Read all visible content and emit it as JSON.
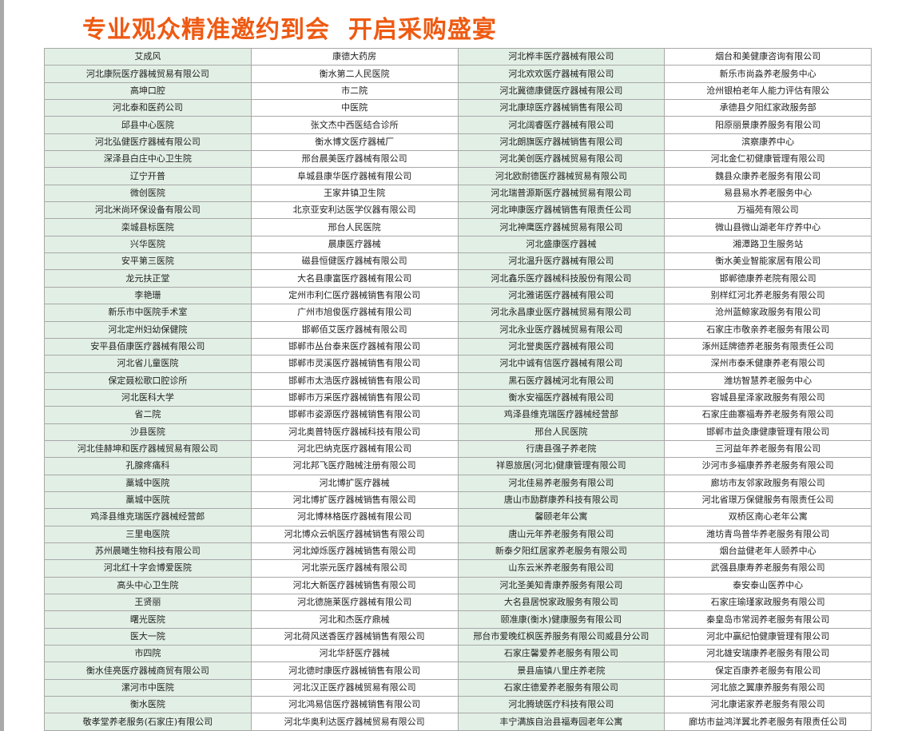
{
  "title": "专业观众精准邀约到会  开启采购盛宴",
  "colors": {
    "title": "#ee5a12",
    "alt_column_bg": "#e2efe5",
    "border": "#a8a8a8"
  },
  "rows": [
    [
      "艾成风",
      "康德大药房",
      "河北桦丰医疗器械有限公司",
      "烟台和美健康咨询有限公司"
    ],
    [
      "河北康阮医疗器械贸易有限公司",
      "衡水第二人民医院",
      "河北欢欢医疗器械有限公司",
      "新乐市尚淼养老服务中心"
    ],
    [
      "高坤口腔",
      "市二院",
      "河北冀德康健医疗器械有限公司",
      "沧州银柏老年人能力评估有限公"
    ],
    [
      "河北泰和医药公司",
      "中医院",
      "河北康琼医疗器械销售有限公司",
      "承德县夕阳红家政服务部"
    ],
    [
      "邱县中心医院",
      "张文杰中西医结合诊所",
      "河北阔睿医疗器械有限公司",
      "阳原丽景康养服务有限公司"
    ],
    [
      "河北弘健医疗器械有限公司",
      "衡水博文医疗器械厂",
      "河北朗旗医疗器械销售有限公司",
      "滨察康养中心"
    ],
    [
      "深泽县白庄中心卫生院",
      "邢台晨美医疗器械有限公司",
      "河北美创医疗器械贸易有限公司",
      "河北金仁初健康管理有限公司"
    ],
    [
      "辽宁开普",
      "阜城县康华医疗器械有限公司",
      "河北欧耐德医疗器械贸易有限公司",
      "魏县众康养老服务有限公司"
    ],
    [
      "微创医院",
      "王家井镇卫生院",
      "河北瑞普源斯医疗器械贸易有限公司",
      "易县易水养老服务中心"
    ],
    [
      "河北米尚环保设备有限公司",
      "北京亚安利达医学仪器有限公司",
      "河北珅康医疗器械销售有限责任公司",
      "万福苑有限公司"
    ],
    [
      "栾城县标医院",
      "邢台人民医院",
      "河北神鹰医疗器械贸易有限公司",
      "微山县微山湖老年疗养中心"
    ],
    [
      "兴华医院",
      "晨康医疗器械",
      "河北盛康医疗器械",
      "湘潭路卫生服务站"
    ],
    [
      "安平第三医院",
      "磁县恒健医疗器械有限公司",
      "河北温升医疗器械有限公司",
      "衡水美业智能家居有限公司"
    ],
    [
      "龙元扶正堂",
      "大名县康富医疗器械有限公司",
      "河北鑫乐医疗器械科技股份有限公司",
      "邯郸德康养老院有限公司"
    ],
    [
      "李艳珊",
      "定州市利仁医疗器械销售有限公司",
      "河北雅诺医疗器械有限公司",
      "别样红河北养老服务有限公司"
    ],
    [
      "新乐市中医院手术室",
      "广州市旭俊医疗器械有限公司",
      "河北永昌康业医疗器械贸易有限公司",
      "沧州蓝鲸家政服务有限公司"
    ],
    [
      "河北定州妇幼保健院",
      "邯郸佰艾医疗器械有限公司",
      "河北永业医疗器械贸易有限公司",
      "石家庄市敬亲养老服务有限公司"
    ],
    [
      "安平县佰康医疗器械有限公司",
      "邯郸市丛台泰来医疗器械有限公司",
      "河北誉奥医疗器械有限公司",
      "涿州廷牌德养老服务有限责任公司"
    ],
    [
      "河北省儿童医院",
      "邯郸市灵溪医疗器械销售有限公司",
      "河北中诚有信医疗器械有限公司",
      "深州市泰禾健康养老有限公司"
    ],
    [
      "保定聂松歌口腔诊所",
      "邯郸市太浩医疗器械销售有限公司",
      "黑石医疗器械河北有限公司",
      "潍坊智慧养老服务中心"
    ],
    [
      "河北医科大学",
      "邯郸市万采医疗器械销售有限公司",
      "衡水安福医疗器械有限公司",
      "容城县星泽家政服务有限公司"
    ],
    [
      "省二院",
      "邯郸市姿源医疗器械销售有限公司",
      "鸡泽县维克瑞医疗器械经营部",
      "石家庄曲寨福寿养老服务有限公司"
    ],
    [
      "沙县医院",
      "河北奥普特医疗器械科技有限公司",
      "邢台人民医院",
      "邯郸市益灸康健康管理有限公司"
    ],
    [
      "河北佳赫坤和医疗器械贸易有限公司",
      "河北巴纳克医疗器械有限公司",
      "行唐县强子养老院",
      "三河益年养老服务有限公司"
    ],
    [
      "孔腺疼痛科",
      "河北邦飞医疗融械注册有限公司",
      "祥恩旅居(河北)健康管理有限公司",
      "沙河市多福康养养老服务有限公司"
    ],
    [
      "藁城中医院",
      "河北博扩医疗器械",
      "河北佳易养老服务有限公司",
      "廊坊市友邻家政服务有限公司"
    ],
    [
      "藁城中医院",
      "河北博扩医疗器械销售有限公司",
      "唐山市励群康养科技有限公司",
      "河北省璟万保健服务有限责任公司"
    ],
    [
      "鸡泽县维克瑞医疗器械经营郎",
      "河北博林格医疗器械有限公司",
      "馨颐老年公寓",
      "双桥区南心老年公寓"
    ],
    [
      "三里电医院",
      "河北博众云帆医疗器械销售有限公司",
      "唐山元年养老服务有限公司",
      "潍坊青鸟普华养老服务有限公司"
    ],
    [
      "苏州晨曦生物科技有限公司",
      "河北焯烁医疗器械销售有限公司",
      "新泰夕阳红居家养老服务有限公司",
      "烟台益健老年人颐养中心"
    ],
    [
      "河北红十字会博爱医院",
      "河北崇元医疗器械有限公司",
      "山东云米养老服务有限公司",
      "武强县康寿养老服务有限公司"
    ],
    [
      "高头中心卫生院",
      "河北大新医疗器械销售有限公司",
      "河北圣美知青康养服务有限公司",
      "泰安泰山医养中心"
    ],
    [
      "王贤丽",
      "河北德施莱医疗器械有限公司",
      "大名县居悦家政服务有限公司",
      "石家庄瑜瑾家政服务有限公司"
    ],
    [
      "曙光医院",
      "河北和杰医疗鼎械",
      "颐准康(衡水)健康服务有限公司",
      "秦皇岛市常润养老服务有限公司"
    ],
    [
      "医大一院",
      "河北荷风送香医疗器械销售有限公司",
      "邢台市爱晚红枫医养服务有限公司威县分公司",
      "河北中赢纪怕健康管理有限公司"
    ],
    [
      "市四院",
      "河北华舒医疗器械",
      "石家庄馨爱养老服务有限公司",
      "河北雄安瑞康养老服务有限公司"
    ],
    [
      "衡水佳亮医疗器械商贸有限公司",
      "河北德时康医疗器械销售有限公司",
      "景县庙镇八里庄养老院",
      "保定百康养老服务有限公司"
    ],
    [
      "漯河市中医院",
      "河北汉正医疗器械贸易有限公司",
      "石家庄德爱养老服务有限公司",
      "河北旅之翼康养服务有限公司"
    ],
    [
      "衡水医院",
      "河北鸿易信医疗器械销售有限公司",
      "河北腾琥医疗科技有限公司",
      "河北康诺家养老服务有限公司"
    ],
    [
      "敬孝堂养老服务(石家庄)有限公司",
      "河北华奥利达医疗器械贸易有限公司",
      "丰宁满族自治县福寿园老年公寓",
      "廊坊市益鸿洋翼北养老服务有限责任公司"
    ]
  ]
}
